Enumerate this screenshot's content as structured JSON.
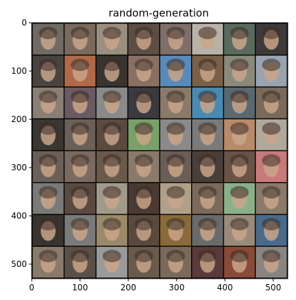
{
  "chart_data": {
    "type": "image",
    "title": "random-generation",
    "xlabel": "",
    "ylabel": "",
    "xlim": [
      0,
      530
    ],
    "ylim": [
      530,
      0
    ],
    "grid": false,
    "image": {
      "description_visible": "8x8 grid of generated face thumbnails",
      "rows": 8,
      "cols": 8,
      "cell_size": 66,
      "separator": 2,
      "separator_color": "#000000",
      "cell_colors": [
        [
          "#6f6a63",
          "#7a6a5e",
          "#9a8e7f",
          "#5c4e45",
          "#7e6f6a",
          "#b8b2a8",
          "#5a6a5e",
          "#3e3a3a"
        ],
        [
          "#4a4440",
          "#b06a4a",
          "#3a3430",
          "#8a7062",
          "#5a8ab8",
          "#7a6048",
          "#8a8a7a",
          "#9aa4b0"
        ],
        [
          "#8a7f74",
          "#6a5a62",
          "#8a8a8a",
          "#3a3a40",
          "#8a7a6a",
          "#4a8ab0",
          "#5a6870",
          "#7a6a5a"
        ],
        [
          "#3a3632",
          "#6a6058",
          "#5a4a40",
          "#7aa06a",
          "#8a8a8a",
          "#7a7a7a",
          "#b88a6a",
          "#b0a89a"
        ],
        [
          "#6a6058",
          "#7a6a62",
          "#6a5a4a",
          "#8a7a6a",
          "#6a5e56",
          "#4a3e38",
          "#6a5246",
          "#c87a7a"
        ],
        [
          "#7a7a78",
          "#5a4a42",
          "#a09a8a",
          "#4a3a34",
          "#b0a08a",
          "#7a6a5a",
          "#8ab08a",
          "#8a7a6a"
        ],
        [
          "#3a3430",
          "#7a7a7a",
          "#9a8a6a",
          "#5a4a3e",
          "#8a6a3a",
          "#6a6a6a",
          "#9a8a7a",
          "#4a6a8a"
        ],
        [
          "#8a7a6a",
          "#5a5048",
          "#9a9a9a",
          "#6a5a4a",
          "#7a6a5a",
          "#5a3a3a",
          "#8a4a3a",
          "#8a8480"
        ]
      ]
    },
    "x_ticks": [
      0,
      100,
      200,
      300,
      400,
      500
    ],
    "y_ticks": [
      0,
      100,
      200,
      300,
      400,
      500
    ]
  }
}
